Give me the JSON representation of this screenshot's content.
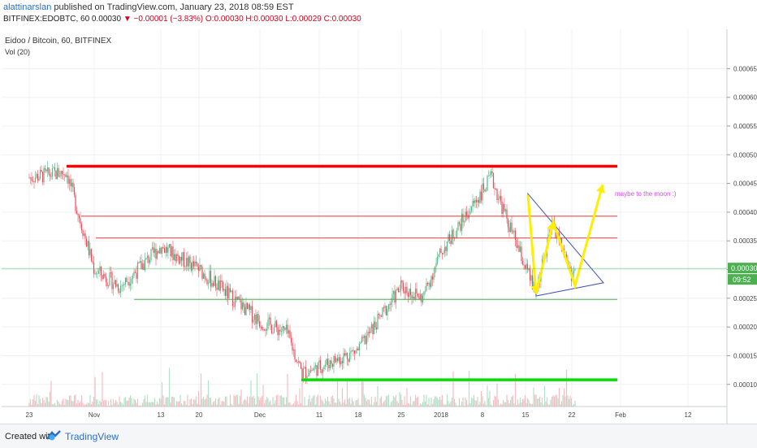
{
  "header": {
    "author": "alattinarslan",
    "published_text": "published on TradingView.com, January 23, 2018 08:59 EST",
    "symbol_line": "BITFINEX:EDOBTC, 60  0.00030",
    "change_text": "▼ −0.00001 (−3.83%)",
    "ohlc_text": "O:0.00030 H:0.00030 L:0.00029 C:0.00030"
  },
  "chart_data": {
    "type": "candlestick",
    "title": "Eidoo / Bitcoin, 60, BITFINEX",
    "indicator": "Vol (20)",
    "ylim": [
      6e-05,
      0.00069
    ],
    "yticks": [
      "0.00065",
      "0.00060",
      "0.00055",
      "0.00050",
      "0.00045",
      "0.00040",
      "0.00035",
      "0.00030",
      "0.00025",
      "0.00020",
      "0.00015",
      "0.00010"
    ],
    "xticks": [
      "23",
      "Nov",
      "13",
      "20",
      "Dec",
      "11",
      "18",
      "25",
      "2018",
      "8",
      "15",
      "22",
      "Feb",
      "12"
    ],
    "current_price": "0.00030",
    "countdown": "09:52",
    "grid": true,
    "price_path": [
      [
        "23",
        0.00046
      ],
      [
        "Oct 28",
        0.00047
      ],
      [
        "Nov",
        0.0003
      ],
      [
        "Nov 5",
        0.00027
      ],
      [
        "13",
        0.00034
      ],
      [
        "20",
        0.0003
      ],
      [
        "Dec",
        0.00021
      ],
      [
        "Dec 7",
        0.00019
      ],
      [
        "Dec 9",
        0.00012
      ],
      [
        "11",
        0.00013
      ],
      [
        "18",
        0.00016
      ],
      [
        "25",
        0.00027
      ],
      [
        "Dec 28",
        0.00025
      ],
      [
        "2018",
        0.00033
      ],
      [
        "8",
        0.00046
      ],
      [
        "Jan 12",
        0.00038
      ],
      [
        "15",
        0.00026
      ],
      [
        "Jan 18",
        0.00038
      ],
      [
        "22",
        0.00029
      ],
      [
        "Jan 23",
        0.0003
      ]
    ],
    "horizontal_levels": [
      {
        "price": 0.00048,
        "color": "#ff0000",
        "style": "thick"
      },
      {
        "price": 0.000393,
        "color": "#e53935",
        "style": "thin"
      },
      {
        "price": 0.000355,
        "color": "#e53935",
        "style": "thin"
      },
      {
        "price": 0.000248,
        "color": "#4caf50",
        "style": "thin"
      },
      {
        "price": 0.000108,
        "color": "#00e000",
        "style": "thick"
      }
    ],
    "annotations": [
      {
        "text": "maybe to the moon :)",
        "color": "#e040fb"
      }
    ],
    "colors": {
      "up": "#53b987",
      "down": "#eb4d5c",
      "triangle": "#3f51b5",
      "arrow": "#ffee00",
      "price_line": "#4caf50",
      "price_label": "#4caf50"
    }
  },
  "footer": {
    "created_with": "Created with",
    "brand": "TradingView"
  }
}
